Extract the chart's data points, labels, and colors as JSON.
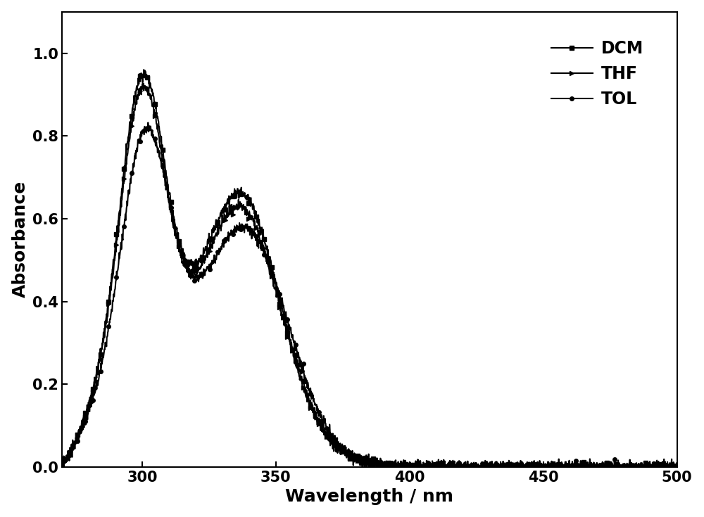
{
  "title": "",
  "xlabel": "Wavelength / nm",
  "ylabel": "Absorbance",
  "xlim": [
    270,
    500
  ],
  "ylim": [
    0.0,
    1.1
  ],
  "yticks": [
    0.0,
    0.2,
    0.4,
    0.6,
    0.8,
    1.0
  ],
  "xticks": [
    300,
    350,
    400,
    450,
    500
  ],
  "line_color": "#000000",
  "background_color": "#ffffff",
  "legend_labels": [
    "DCM",
    "THF",
    "TOL"
  ],
  "legend_markers": [
    "s",
    ">",
    "o"
  ],
  "legend_loc": "upper right",
  "xlabel_fontsize": 18,
  "ylabel_fontsize": 18,
  "tick_fontsize": 15,
  "legend_fontsize": 17,
  "linewidth": 1.5,
  "marker_size": 4,
  "n_markers": 80
}
